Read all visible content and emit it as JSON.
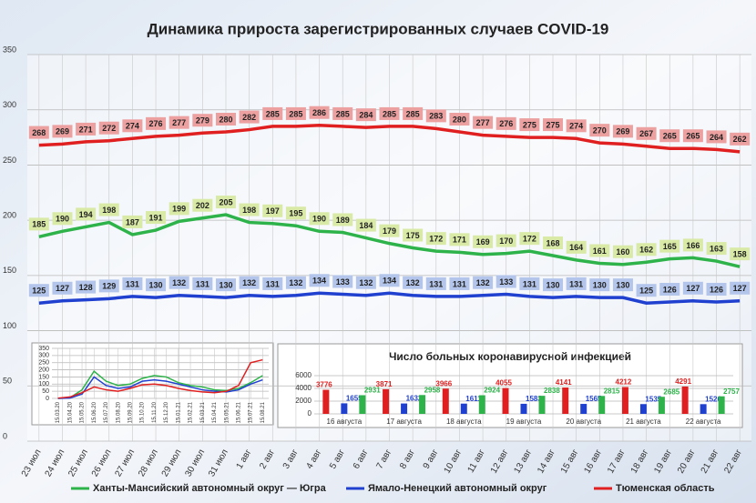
{
  "chart_data": [
    {
      "type": "line",
      "title": "Динамика прироста зарегистрированных случаев COVID-19",
      "categories": [
        "23 июл",
        "24 июл",
        "25 июл",
        "26 июл",
        "27 июл",
        "28 июл",
        "29 июл",
        "30 июл",
        "31 июл",
        "1 авг",
        "2 авг",
        "3 авг",
        "4 авг",
        "5 авг",
        "6 авг",
        "7 авг",
        "8 авг",
        "9 авг",
        "10 авг",
        "11 авг",
        "12 авг",
        "13 авг",
        "14 авг",
        "15 авг",
        "16 авг",
        "17 авг",
        "18 авг",
        "19 авг",
        "20 авг",
        "21 авг",
        "22 авг"
      ],
      "series": [
        {
          "name": "Ханты-Мансийский автономный округ — Югра",
          "color": "#2db34a",
          "values": [
            185,
            190,
            194,
            198,
            187,
            191,
            199,
            202,
            205,
            198,
            197,
            195,
            190,
            189,
            184,
            179,
            175,
            172,
            171,
            169,
            170,
            172,
            168,
            164,
            161,
            160,
            162,
            165,
            166,
            163,
            158
          ]
        },
        {
          "name": "Ямало-Ненецкий автономный округ",
          "color": "#2040d0",
          "values": [
            125,
            127,
            128,
            129,
            131,
            130,
            132,
            131,
            130,
            132,
            131,
            132,
            134,
            133,
            132,
            134,
            132,
            131,
            131,
            132,
            133,
            131,
            130,
            131,
            130,
            130,
            125,
            126,
            127,
            126,
            127
          ]
        },
        {
          "name": "Тюменская область",
          "color": "#e02020",
          "values": [
            268,
            269,
            271,
            272,
            274,
            276,
            277,
            279,
            280,
            282,
            285,
            285,
            286,
            285,
            284,
            285,
            285,
            283,
            280,
            277,
            276,
            275,
            275,
            274,
            270,
            269,
            267,
            265,
            265,
            264,
            262
          ]
        }
      ],
      "ylim": [
        0,
        350
      ],
      "yticks": [
        0,
        50,
        100,
        150,
        200,
        250,
        300,
        350
      ],
      "grid": true
    },
    {
      "type": "line",
      "categories": [
        "15.03.20",
        "15.04.20",
        "15.05.20",
        "15.06.20",
        "15.07.20",
        "15.08.20",
        "15.09.20",
        "15.10.20",
        "15.11.20",
        "15.12.20",
        "15.01.21",
        "15.02.21",
        "15.03.21",
        "15.04.21",
        "15.05.21",
        "15.06.21",
        "15.07.21",
        "15.08.21"
      ],
      "series": [
        {
          "color": "#2db34a",
          "values": [
            0,
            5,
            60,
            190,
            120,
            90,
            100,
            140,
            160,
            150,
            110,
            90,
            80,
            60,
            55,
            70,
            110,
            160
          ]
        },
        {
          "color": "#2040d0",
          "values": [
            0,
            2,
            30,
            150,
            90,
            70,
            80,
            120,
            130,
            120,
            100,
            80,
            60,
            50,
            45,
            60,
            100,
            130
          ]
        },
        {
          "color": "#e02020",
          "values": [
            2,
            10,
            40,
            80,
            60,
            50,
            70,
            95,
            100,
            90,
            70,
            55,
            45,
            40,
            50,
            90,
            250,
            270
          ]
        }
      ],
      "ylim": [
        0,
        350
      ],
      "yticks": [
        0,
        50,
        100,
        150,
        200,
        250,
        300,
        350
      ],
      "grid": true
    },
    {
      "type": "bar",
      "title": "Число больных коронавирусной инфекцией",
      "categories": [
        "16 августа",
        "17 августа",
        "18 августа",
        "19 августа",
        "20 августа",
        "21 августа",
        "22 августа"
      ],
      "series": [
        {
          "color": "#e02020",
          "values": [
            3776,
            3871,
            3966,
            4055,
            4141,
            4212,
            4291
          ]
        },
        {
          "color": "#2040d0",
          "values": [
            1655,
            1632,
            1611,
            1583,
            1565,
            1535,
            1526
          ]
        },
        {
          "color": "#2db34a",
          "values": [
            2931,
            2958,
            2924,
            2838,
            2815,
            2685,
            2757
          ]
        }
      ],
      "ylim": [
        0,
        6000
      ],
      "yticks": [
        0,
        2000,
        4000,
        6000
      ],
      "grid": true
    }
  ]
}
